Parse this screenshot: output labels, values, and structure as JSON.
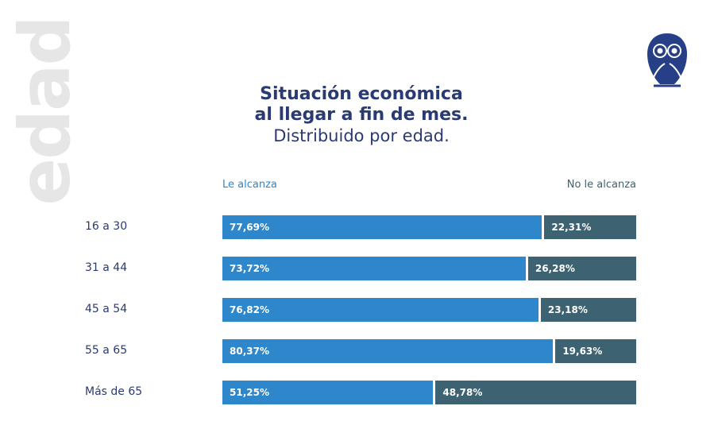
{
  "side_label": "edad",
  "chart_data": {
    "type": "bar",
    "stacked": true,
    "orientation": "horizontal",
    "title": "Situación económica al llegar a fin de mes.",
    "title_lines": [
      "Situación económica",
      "al llegar a fin de mes."
    ],
    "subtitle": "Distribuido por edad.",
    "categories": [
      "16 a 30",
      "31 a 44",
      "45 a 54",
      "55 a 65",
      "Más de 65"
    ],
    "series": [
      {
        "name": "Le alcanza",
        "color": "#2e86cb",
        "values": [
          77.69,
          73.72,
          76.82,
          80.37,
          51.25
        ],
        "labels": [
          "77,69%",
          "73,72%",
          "76,82%",
          "80,37%",
          "51,25%"
        ]
      },
      {
        "name": "No le alcanza",
        "color": "#3d6272",
        "values": [
          22.31,
          26.28,
          23.18,
          19.63,
          48.78
        ],
        "labels": [
          "22,31%",
          "26,28%",
          "23,18%",
          "19,63%",
          "48,78%"
        ]
      }
    ],
    "legend": "top",
    "xlim": [
      0,
      100
    ]
  },
  "logo": "owl-logo"
}
